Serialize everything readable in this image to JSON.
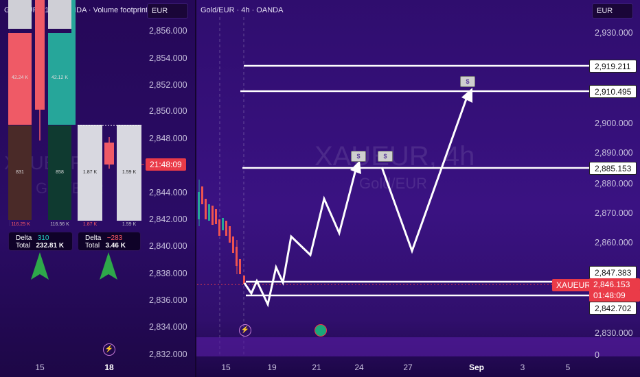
{
  "left_chart": {
    "title": "Gold/EUR · 15 · OANDA · Volume footprint",
    "currency": "EUR",
    "price_axis": [
      "2,856.000",
      "2,854.000",
      "2,852.000",
      "2,850.000",
      "2,848.000",
      "2,844.000",
      "2,842.000",
      "2,840.000",
      "2,838.000",
      "2,836.000",
      "2,834.000",
      "2,832.000"
    ],
    "countdown": "21:48:09",
    "dates": [
      "15",
      "18"
    ],
    "footprint_values": {
      "c1_top": "42.24 K",
      "c2_top": "42.12 K",
      "c1_bottom": "831",
      "c2_bottom": "858",
      "c1_total": "116.25 K",
      "c2_total": "116.56 K",
      "c3_left": "1.87 K",
      "c3_right": "1.59 K",
      "c3_total_left": "1.87 K",
      "c3_total_right": "1.59 K"
    },
    "summary_1": {
      "delta_label": "Delta",
      "delta": "310",
      "total_label": "Total",
      "total": "232.81 K"
    },
    "summary_2": {
      "delta_label": "Delta",
      "delta": "−283",
      "total_label": "Total",
      "total": "3.46 K"
    },
    "watermark_symbol": "XAUEUR",
    "watermark_name": "Gold/EUR"
  },
  "right_chart": {
    "title": "Gold/EUR · 4h · OANDA",
    "currency": "EUR",
    "price_axis": [
      "2,930.000",
      "2,890.000",
      "2,880.000",
      "2,870.000",
      "2,860.000",
      "2,830.000",
      "0"
    ],
    "extra_axis": [
      "2,900.000"
    ],
    "levels": [
      "2,919.211",
      "2,910.495",
      "2,885.153",
      "2,847.383",
      "2,842.702"
    ],
    "symbol_tag": "XAUEUR",
    "last_price": "2,846.153",
    "countdown": "01:48:09",
    "dates": [
      "15",
      "19",
      "21",
      "24",
      "27",
      "Sep",
      "3",
      "5"
    ],
    "watermark_symbol": "XAUEUR, 4h",
    "watermark_name": "Gold/EUR",
    "money_icon_label": "$"
  },
  "colors": {
    "bull": "#26a69a",
    "bear": "#ef5350",
    "accent": "#2962ff"
  }
}
